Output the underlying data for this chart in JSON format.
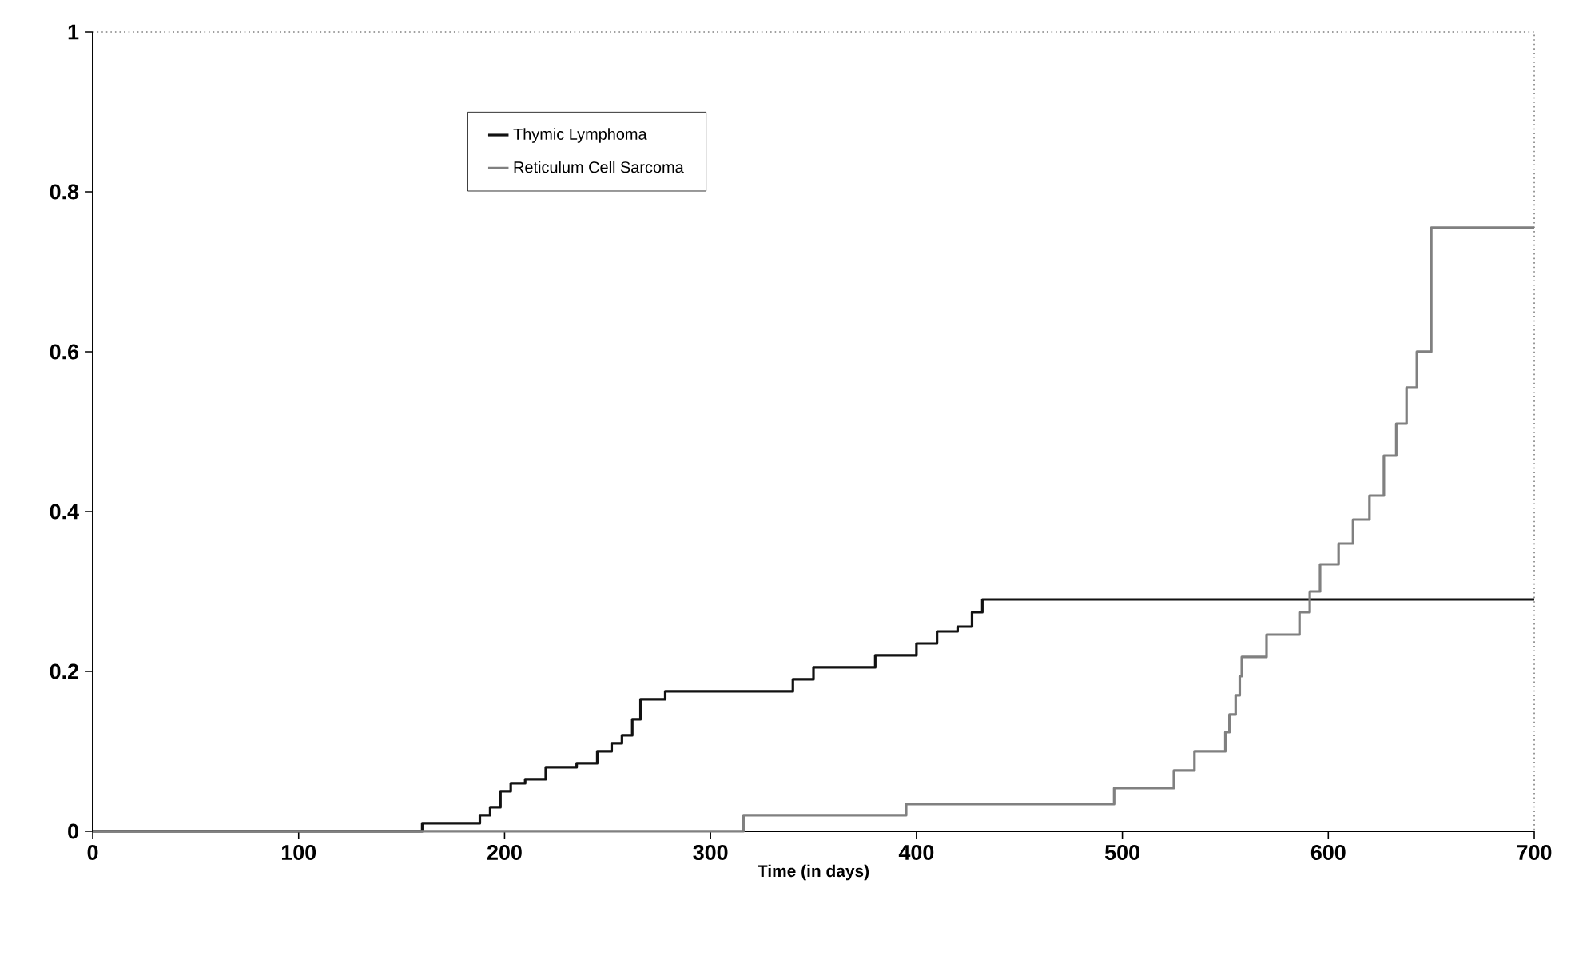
{
  "chart_data": {
    "type": "step",
    "xlabel": "Time (in days)",
    "xlim": [
      0,
      700
    ],
    "xticks": [
      0,
      100,
      200,
      300,
      400,
      500,
      600,
      700
    ],
    "ylim": [
      0,
      1
    ],
    "yticks": [
      0,
      0.2,
      0.4,
      0.6,
      0.8,
      1
    ],
    "grid": false,
    "legend": "top left",
    "series": [
      {
        "name": "Thymic Lymphoma",
        "color": "#111111",
        "x": [
          0,
          160,
          188,
          193,
          198,
          203,
          210,
          220,
          235,
          245,
          252,
          257,
          262,
          266,
          278,
          340,
          350,
          380,
          400,
          410,
          420,
          427,
          432,
          700
        ],
        "values": [
          0,
          0.01,
          0.02,
          0.03,
          0.05,
          0.06,
          0.065,
          0.08,
          0.085,
          0.1,
          0.11,
          0.12,
          0.14,
          0.165,
          0.175,
          0.19,
          0.205,
          0.22,
          0.235,
          0.25,
          0.256,
          0.274,
          0.29,
          0.29
        ]
      },
      {
        "name": "Reticulum Cell Sarcoma",
        "color": "#808080",
        "x": [
          0,
          316,
          395,
          496,
          525,
          535,
          550,
          552,
          555,
          557,
          558,
          570,
          586,
          591,
          596,
          605,
          612,
          620,
          627,
          633,
          638,
          643,
          650,
          700
        ],
        "values": [
          0,
          0.02,
          0.034,
          0.054,
          0.076,
          0.1,
          0.124,
          0.146,
          0.17,
          0.194,
          0.218,
          0.246,
          0.274,
          0.3,
          0.334,
          0.36,
          0.39,
          0.42,
          0.47,
          0.51,
          0.555,
          0.6,
          0.755,
          0.755
        ]
      }
    ]
  }
}
